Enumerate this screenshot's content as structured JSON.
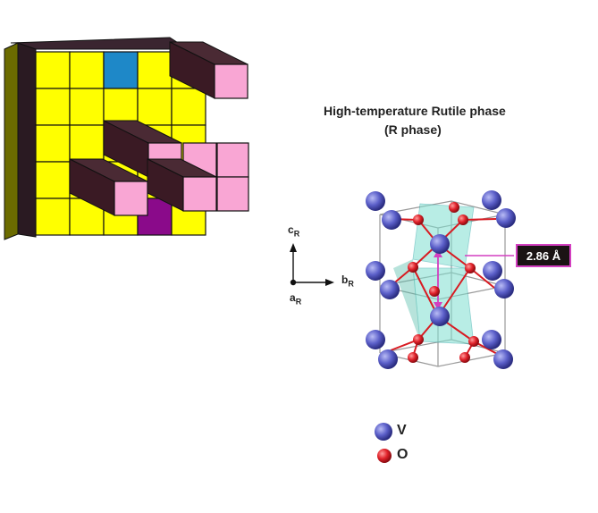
{
  "title": {
    "line1": "High-temperature Rutile phase",
    "line2": "(R phase)"
  },
  "bond_length_label": "2.86 Å",
  "axes": {
    "c": {
      "letter": "c",
      "sub": "R"
    },
    "b": {
      "letter": "b",
      "sub": "R"
    },
    "a": {
      "letter": "a",
      "sub": "R"
    }
  },
  "legend": [
    {
      "label": "V",
      "color": "#5b5fc9"
    },
    {
      "label": "O",
      "color": "#e0222a"
    }
  ],
  "colors": {
    "cube_yellow": "#ffff00",
    "cube_pink": "#f9a6d4",
    "cube_blue": "#1e88c8",
    "cube_purple": "#8a0a8a",
    "cube_dark": "#3a1a24",
    "octahedron": "#7fe0d0",
    "bond_pink": "#d33fc0"
  }
}
